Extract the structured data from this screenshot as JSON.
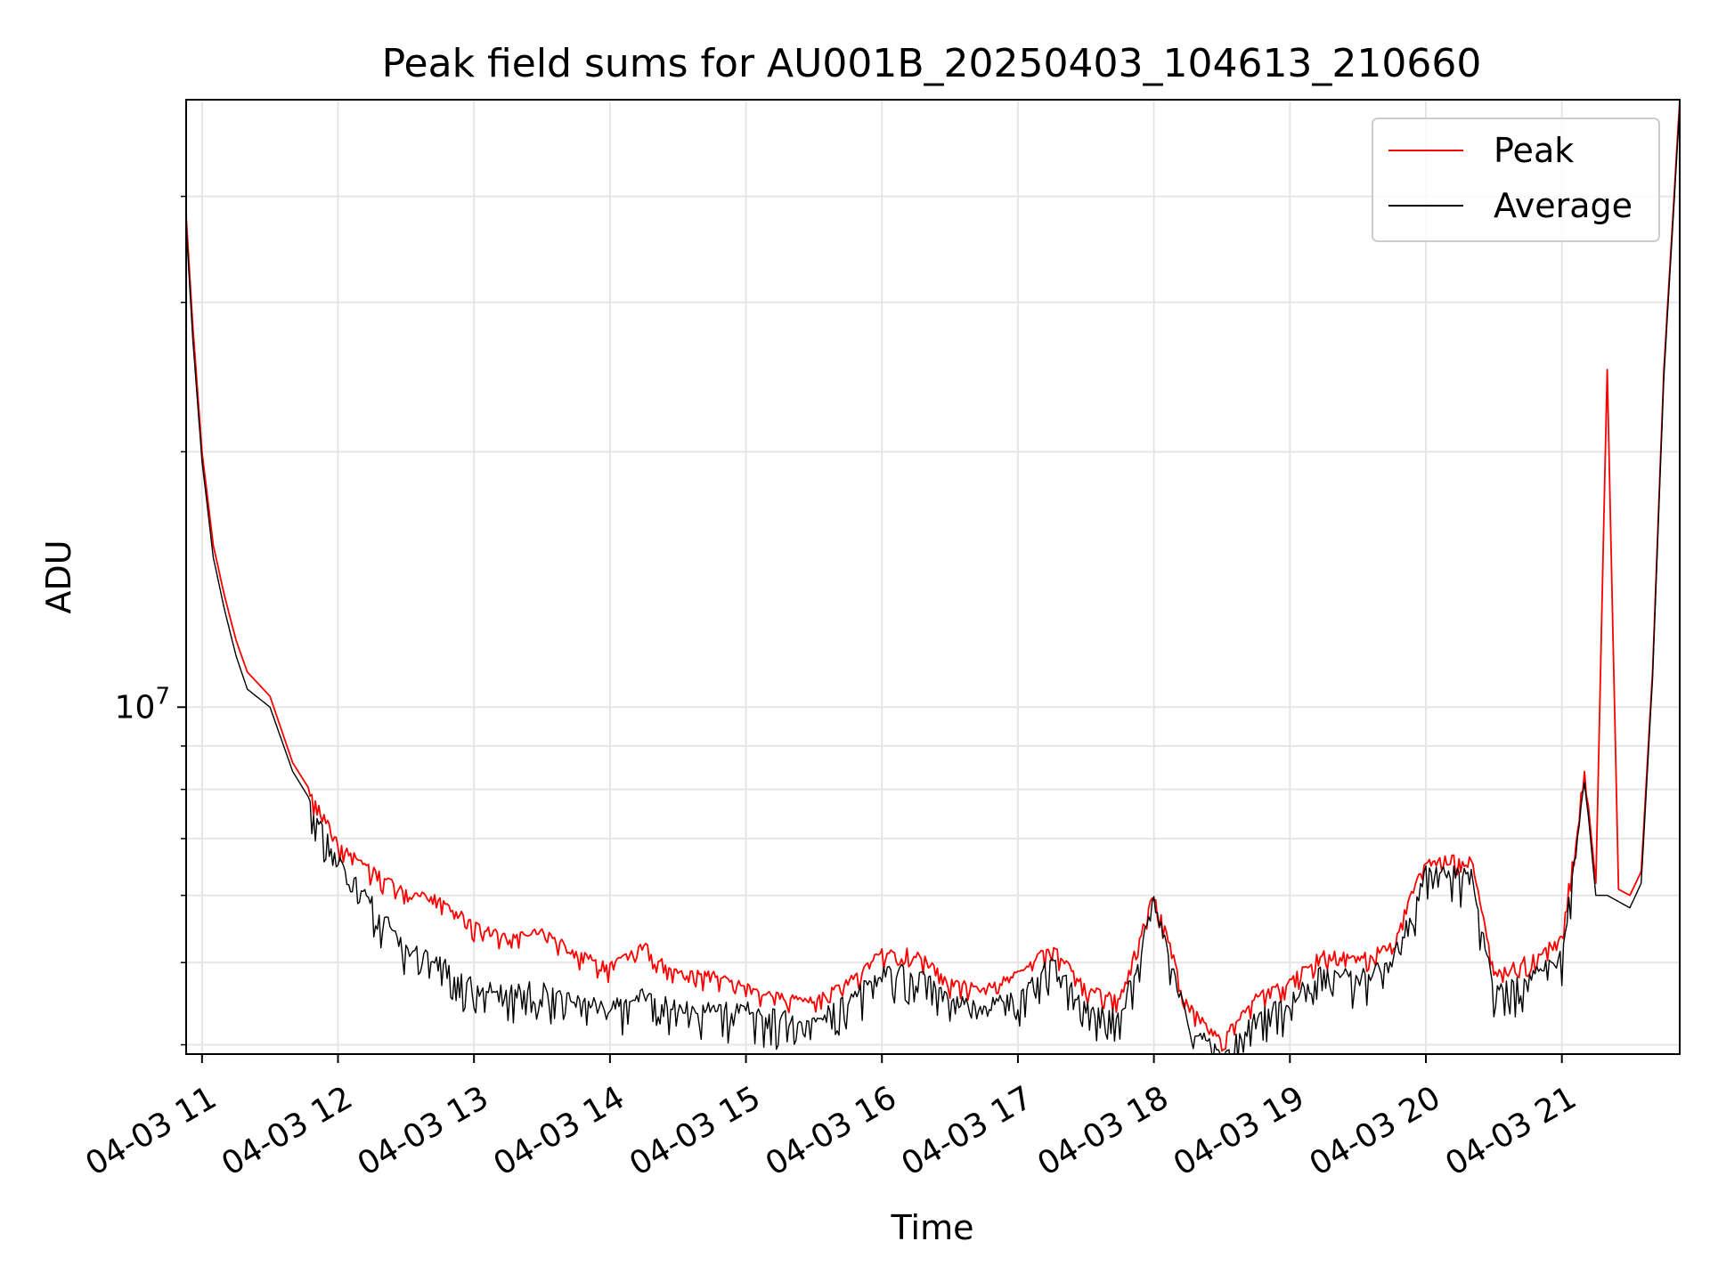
{
  "chart_data": {
    "type": "line",
    "title": "Peak field sums for AU001B_20250403_104613_210660",
    "xlabel": "Time",
    "ylabel": "ADU",
    "y_scale": "log",
    "ylim": [
      3900000,
      52000000
    ],
    "xlim": [
      "2025-04-03 10:53",
      "2025-04-03 21:52"
    ],
    "y_major_tick": {
      "value": 10000000,
      "label_base": "10",
      "label_exp": "7"
    },
    "y_minor_ticks": [
      4000000,
      5000000,
      6000000,
      7000000,
      8000000,
      9000000,
      20000000,
      30000000,
      40000000
    ],
    "x_ticks": [
      "04-03 11",
      "04-03 12",
      "04-03 13",
      "04-03 14",
      "04-03 15",
      "04-03 16",
      "04-03 17",
      "04-03 18",
      "04-03 19",
      "04-03 20",
      "04-03 21"
    ],
    "grid": true,
    "legend": {
      "position": "upper right"
    },
    "colors": {
      "peak": "#ff0000",
      "average": "#000000",
      "grid": "#e6e6e6"
    },
    "series": [
      {
        "name": "Peak",
        "color": "#ff0000",
        "x": [
          "2025-04-03 10:53",
          "2025-04-03 10:56",
          "2025-04-03 11:00",
          "2025-04-03 11:05",
          "2025-04-03 11:10",
          "2025-04-03 11:15",
          "2025-04-03 11:20",
          "2025-04-03 11:30",
          "2025-04-03 11:40",
          "2025-04-03 11:50",
          "2025-04-03 12:00",
          "2025-04-03 12:15",
          "2025-04-03 12:30",
          "2025-04-03 12:45",
          "2025-04-03 13:00",
          "2025-04-03 13:15",
          "2025-04-03 13:30",
          "2025-04-03 13:45",
          "2025-04-03 14:00",
          "2025-04-03 14:15",
          "2025-04-03 14:30",
          "2025-04-03 14:45",
          "2025-04-03 15:00",
          "2025-04-03 15:15",
          "2025-04-03 15:30",
          "2025-04-03 15:45",
          "2025-04-03 16:00",
          "2025-04-03 16:15",
          "2025-04-03 16:30",
          "2025-04-03 16:45",
          "2025-04-03 17:00",
          "2025-04-03 17:15",
          "2025-04-03 17:30",
          "2025-04-03 17:45",
          "2025-04-03 18:00",
          "2025-04-03 18:15",
          "2025-04-03 18:30",
          "2025-04-03 18:45",
          "2025-04-03 19:00",
          "2025-04-03 19:15",
          "2025-04-03 19:30",
          "2025-04-03 19:45",
          "2025-04-03 20:00",
          "2025-04-03 20:10",
          "2025-04-03 20:20",
          "2025-04-03 20:30",
          "2025-04-03 20:45",
          "2025-04-03 21:00",
          "2025-04-03 21:10",
          "2025-04-03 21:15",
          "2025-04-03 21:20",
          "2025-04-03 21:25",
          "2025-04-03 21:30",
          "2025-04-03 21:35",
          "2025-04-03 21:40",
          "2025-04-03 21:45",
          "2025-04-03 21:52"
        ],
        "y": [
          38000000,
          28000000,
          20000000,
          15500000,
          13500000,
          12000000,
          11000000,
          10300000,
          8600000,
          7800000,
          7000000,
          6500000,
          6100000,
          6000000,
          5600000,
          5400000,
          5500000,
          5200000,
          5000000,
          5300000,
          4900000,
          4900000,
          4750000,
          4600000,
          4550000,
          4800000,
          5200000,
          5200000,
          4800000,
          4700000,
          4900000,
          5300000,
          4700000,
          4600000,
          6100000,
          4500000,
          4100000,
          4600000,
          4800000,
          5200000,
          5100000,
          5300000,
          6700000,
          6700000,
          6700000,
          4900000,
          5100000,
          5400000,
          8500000,
          6200000,
          25000000,
          6100000,
          6000000,
          6400000,
          11000000,
          25000000,
          52000000
        ]
      },
      {
        "name": "Average",
        "color": "#000000",
        "x": [
          "2025-04-03 10:53",
          "2025-04-03 10:56",
          "2025-04-03 11:00",
          "2025-04-03 11:05",
          "2025-04-03 11:10",
          "2025-04-03 11:15",
          "2025-04-03 11:20",
          "2025-04-03 11:30",
          "2025-04-03 11:40",
          "2025-04-03 11:50",
          "2025-04-03 12:00",
          "2025-04-03 12:15",
          "2025-04-03 12:30",
          "2025-04-03 12:45",
          "2025-04-03 13:00",
          "2025-04-03 13:15",
          "2025-04-03 13:30",
          "2025-04-03 13:45",
          "2025-04-03 14:00",
          "2025-04-03 14:15",
          "2025-04-03 14:30",
          "2025-04-03 14:45",
          "2025-04-03 15:00",
          "2025-04-03 15:15",
          "2025-04-03 15:30",
          "2025-04-03 15:45",
          "2025-04-03 16:00",
          "2025-04-03 16:15",
          "2025-04-03 16:30",
          "2025-04-03 16:45",
          "2025-04-03 17:00",
          "2025-04-03 17:15",
          "2025-04-03 17:30",
          "2025-04-03 17:45",
          "2025-04-03 18:00",
          "2025-04-03 18:15",
          "2025-04-03 18:30",
          "2025-04-03 18:45",
          "2025-04-03 19:00",
          "2025-04-03 19:15",
          "2025-04-03 19:30",
          "2025-04-03 19:45",
          "2025-04-03 20:00",
          "2025-04-03 20:10",
          "2025-04-03 20:20",
          "2025-04-03 20:30",
          "2025-04-03 20:45",
          "2025-04-03 21:00",
          "2025-04-03 21:10",
          "2025-04-03 21:15",
          "2025-04-03 21:20",
          "2025-04-03 21:25",
          "2025-04-03 21:30",
          "2025-04-03 21:35",
          "2025-04-03 21:40",
          "2025-04-03 21:45",
          "2025-04-03 21:52"
        ],
        "y": [
          37000000,
          27000000,
          19500000,
          15000000,
          13000000,
          11500000,
          10500000,
          10000000,
          8400000,
          7600000,
          6700000,
          6000000,
          5300000,
          5100000,
          4800000,
          4700000,
          4800000,
          4600000,
          4500000,
          4700000,
          4500000,
          4500000,
          4500000,
          4400000,
          4350000,
          4600000,
          5000000,
          5000000,
          4600000,
          4500000,
          4700000,
          5100000,
          4500000,
          4400000,
          6000000,
          4300000,
          4000000,
          4400000,
          4600000,
          5000000,
          4900000,
          5100000,
          6500000,
          6500000,
          6500000,
          4700000,
          4900000,
          5200000,
          8300000,
          6000000,
          6000000,
          5900000,
          5800000,
          6200000,
          10800000,
          24500000,
          51000000
        ]
      }
    ]
  }
}
